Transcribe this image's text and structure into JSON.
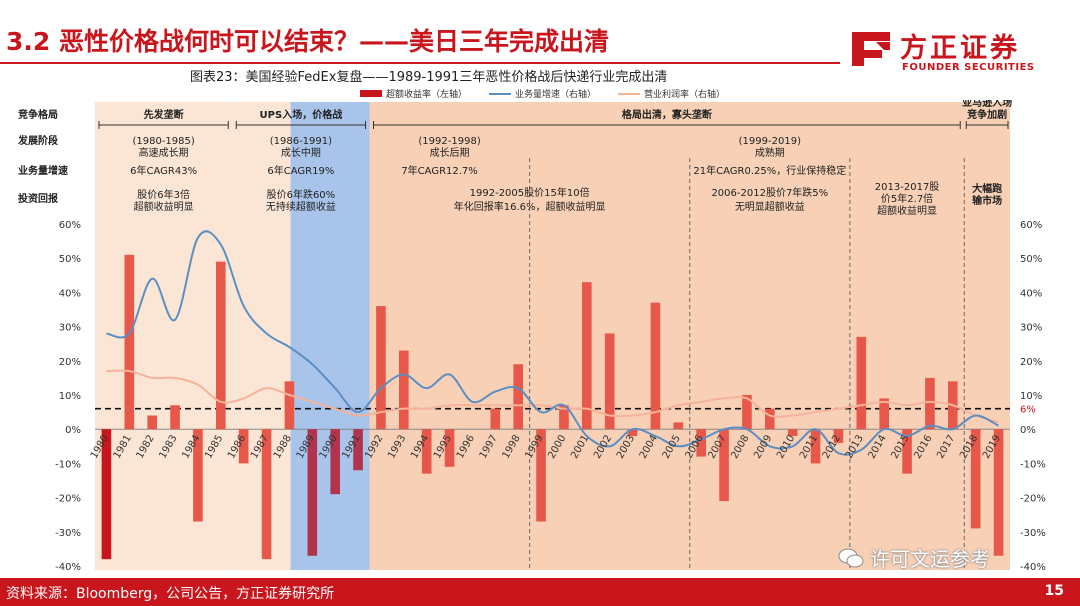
{
  "header": {
    "title": "3.2 恶性价格战何时可以结束？——美日三年完成出清",
    "logo_cn": "方正证券",
    "logo_en": "FOUNDER SECURITIES"
  },
  "figure": {
    "title": "图表23：美国经验FedEx复盘——1989-1991三年恶性价格战后快递行业完成出清",
    "legend": {
      "bar": "超额收益率（左轴）",
      "growth": "业务量增速（右轴）",
      "margin": "营业利润率（右轴）"
    }
  },
  "annotations": {
    "row_labels": [
      "竞争格局",
      "发展阶段",
      "业务量增速",
      "投资回报"
    ],
    "periods": [
      {
        "from": 1980,
        "to": 1985,
        "competition": "先发垄断",
        "stage": "(1980-1985)",
        "stage2": "高速成长期",
        "growth": "6年CAGR43%",
        "ret1": "股价6年3倍",
        "ret2": "超额收益明显"
      },
      {
        "from": 1986,
        "to": 1991,
        "competition": "UPS入场，价格战",
        "stage": "(1986-1991)",
        "stage2": "成长中期",
        "growth": "6年CAGR19%",
        "ret1": "股价6年跌60%",
        "ret2": "无持续超额收益"
      },
      {
        "from": 1992,
        "to": 2017,
        "competition": "格局出清，寡头垄断",
        "stage": "",
        "stage2": "",
        "growth": "",
        "ret1": "",
        "ret2": ""
      },
      {
        "from": 2018,
        "to": 2019,
        "competition": "亚马逊入场",
        "competition2": "竞争加剧",
        "stage": "",
        "stage2": "",
        "growth": "",
        "ret1": "大幅跑",
        "ret2": "输市场"
      }
    ],
    "sub_stages": [
      {
        "stage": "(1992-1998)",
        "stage2": "成长后期",
        "growth": "7年CAGR12.7%"
      },
      {
        "stage": "(1999-2019)",
        "stage2": "成熟期",
        "growth": "21年CAGR0.25%，行业保持稳定"
      }
    ],
    "returns": [
      {
        "l1": "1992-2005股价15年10倍",
        "l2": "年化回报率16.6%，超额收益明显"
      },
      {
        "l1": "2006-2012股价7年跌5%",
        "l2": "无明显超额收益"
      },
      {
        "l1": "2013-2017股",
        "l2": "价5年2.7倍",
        "l3": "超额收益明显"
      }
    ],
    "ref_line_label": "6%"
  },
  "chart_data": {
    "type": "bar+line",
    "x": [
      1980,
      1981,
      1982,
      1983,
      1984,
      1985,
      1986,
      1987,
      1988,
      1989,
      1990,
      1991,
      1992,
      1993,
      1994,
      1995,
      1996,
      1997,
      1998,
      1999,
      2000,
      2001,
      2002,
      2003,
      2004,
      2005,
      2006,
      2007,
      2008,
      2009,
      2010,
      2011,
      2012,
      2013,
      2014,
      2015,
      2016,
      2017,
      2018,
      2019
    ],
    "excess_return": [
      -38,
      51,
      4,
      7,
      -27,
      49,
      -10,
      -38,
      14,
      -37,
      -19,
      -12,
      36,
      23,
      -13,
      -11,
      0,
      6,
      19,
      -27,
      7,
      43,
      28,
      -2,
      37,
      2,
      -8,
      -21,
      10,
      6,
      -2,
      -10,
      -4,
      27,
      9,
      -13,
      15,
      14,
      -29,
      -37
    ],
    "business_growth": [
      28,
      28,
      44,
      32,
      56,
      54,
      36,
      28,
      24,
      19,
      12,
      5,
      12,
      16,
      12,
      16,
      8,
      11,
      12,
      5,
      7,
      -2,
      -5,
      0,
      -2,
      -5,
      -3,
      0,
      0,
      -5,
      -5,
      0,
      -7,
      -6,
      0,
      -2,
      1,
      0,
      4,
      1
    ],
    "operating_margin": [
      17,
      17,
      15,
      15,
      13,
      8,
      9,
      12,
      10,
      8,
      6,
      4,
      5,
      6,
      6,
      7,
      7,
      7,
      7,
      7,
      6,
      6,
      4,
      4,
      5,
      7,
      8,
      9,
      9,
      4,
      4,
      5,
      6,
      7,
      8,
      7,
      8,
      7,
      4,
      2
    ],
    "y_left": {
      "min": -40,
      "max": 60,
      "ticks": [
        "-40%",
        "-30%",
        "-20%",
        "-10%",
        "0%",
        "10%",
        "20%",
        "30%",
        "40%",
        "50%",
        "60%"
      ]
    },
    "y_right": {
      "min": -40,
      "max": 60,
      "ticks": [
        "-40%",
        "-30%",
        "-20%",
        "-10%",
        "0%",
        "10%",
        "20%",
        "30%",
        "40%",
        "50%",
        "60%"
      ]
    },
    "ref_line": 6,
    "colors": {
      "bar_dark": "#c9161d",
      "bar_mid": "#e8584a",
      "bar_purple": "#b0344e",
      "growth": "#5b8fc4",
      "margin": "#f5b39a",
      "shade1": "#fbe6d6",
      "shade2": "#f7d0b6",
      "shade_blue": "#a9c4ea"
    }
  },
  "footer": {
    "source": "资料来源：Bloomberg，公司公告，方正证券研究所",
    "page": "15"
  },
  "watermark": "许可文运参考"
}
